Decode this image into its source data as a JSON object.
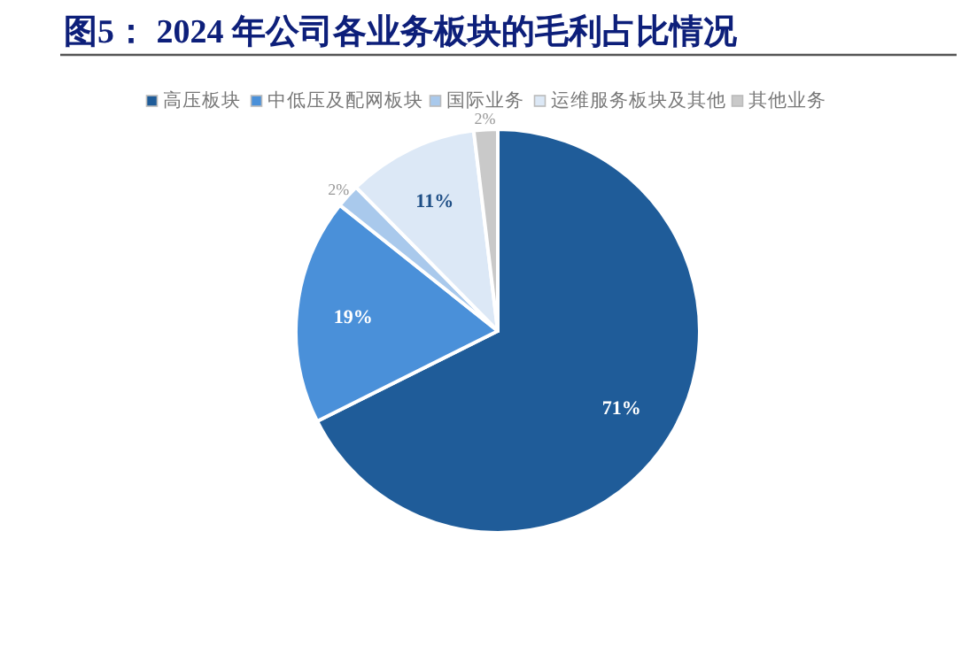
{
  "chart_data": {
    "type": "pie",
    "title": "图5：  2024 年公司各业务板块的毛利占比情况",
    "categories": [
      "高压板块",
      "中低压及配网板块",
      "国际业务",
      "运维服务板块及其他",
      "其他业务"
    ],
    "values": [
      71,
      19,
      2,
      11,
      2
    ],
    "value_labels": [
      "71%",
      "19%",
      "2%",
      "11%",
      "2%"
    ],
    "colors": [
      "#1f5c99",
      "#4a90d9",
      "#a9c9ec",
      "#dce8f6",
      "#c9c9c9"
    ],
    "legend": "top"
  }
}
